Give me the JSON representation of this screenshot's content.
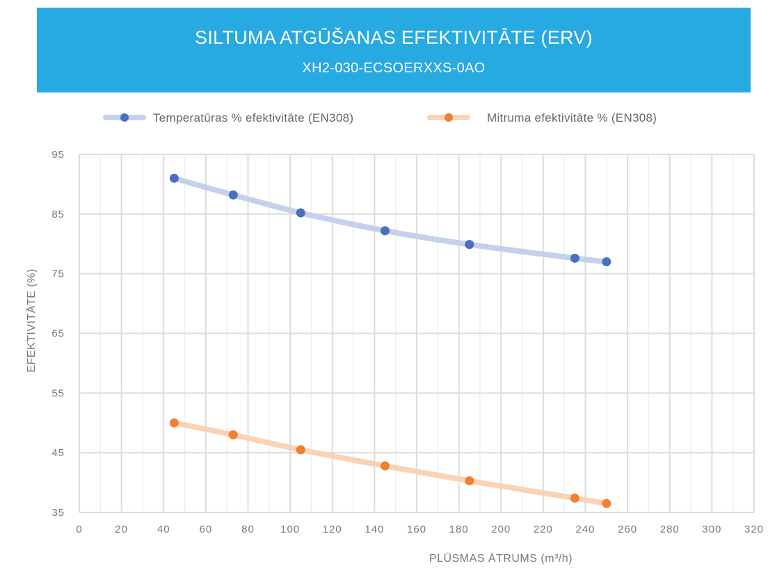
{
  "header": {
    "title": "SILTUMA ATGŪŠANAS EFEKTIVITĀTE (ERV)",
    "subtitle": "XH2-030-ECSOERXXS-0AO"
  },
  "colors": {
    "banner": "#27a9e1",
    "temperature_series": "#4a6fbd",
    "temperature_line": "#c5d0ec",
    "humidity_series": "#f07f2e",
    "humidity_line": "#fad3b4",
    "grid": "#e0e0e0"
  },
  "chart_data": {
    "type": "scatter",
    "title": "SILTUMA ATGŪŠANAS EFEKTIVITĀTE (ERV)",
    "subtitle": "XH2-030-ECSOERXXS-0AO",
    "xlabel": "PLŪSMAS ĀTRUMS (m³/h)",
    "ylabel": "EFEKTIVITĀTE (%)",
    "xlim": [
      0,
      320
    ],
    "ylim": [
      35,
      95
    ],
    "xticks": [
      "0",
      "20",
      "40",
      "60",
      "80",
      "100",
      "120",
      "140",
      "160",
      "180",
      "200",
      "220",
      "240",
      "260",
      "280",
      "300",
      "320"
    ],
    "yticks": [
      "95",
      "85",
      "75",
      "65",
      "55",
      "45",
      "35"
    ],
    "grid": true,
    "legend_position": "top",
    "series": [
      {
        "name": "Temperatūras % efektivitāte (EN308)",
        "x": [
          45,
          73,
          105,
          145,
          185,
          235,
          250
        ],
        "y": [
          91,
          88.2,
          85.2,
          82.2,
          79.9,
          77.6,
          77
        ]
      },
      {
        "name": "Mitruma efektivitāte % (EN308)",
        "x": [
          45,
          73,
          105,
          145,
          185,
          235,
          250
        ],
        "y": [
          50,
          48,
          45.5,
          42.8,
          40.3,
          37.4,
          36.5
        ]
      }
    ]
  }
}
